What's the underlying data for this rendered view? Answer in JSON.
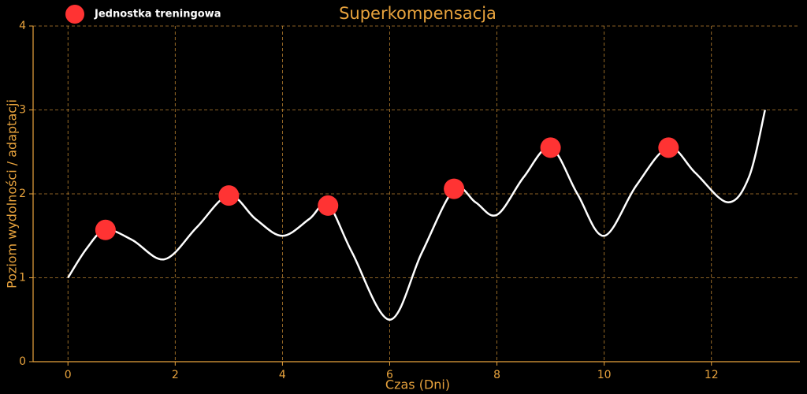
{
  "chart_data": {
    "type": "line",
    "title": "Superkompensacja",
    "xlabel": "Czas (Dni)",
    "ylabel": "Poziom wydolności / adaptacji",
    "x": [
      0,
      0.35,
      0.7,
      1.2,
      1.8,
      2.4,
      3.0,
      3.5,
      4.0,
      4.5,
      4.85,
      5.3,
      6.0,
      6.6,
      7.2,
      7.6,
      8.0,
      8.5,
      9.0,
      9.5,
      10.0,
      10.6,
      11.2,
      11.7,
      12.3,
      12.7,
      13.0
    ],
    "values": [
      1.0,
      1.35,
      1.57,
      1.45,
      1.22,
      1.6,
      1.98,
      1.7,
      1.5,
      1.7,
      1.87,
      1.3,
      0.5,
      1.3,
      2.05,
      1.9,
      1.75,
      2.2,
      2.55,
      2.0,
      1.5,
      2.1,
      2.55,
      2.25,
      1.9,
      2.2,
      3.0
    ],
    "color": "#ffffff",
    "points": {
      "name": "Jednostka treningowa",
      "color": "#ff3333",
      "x": [
        0.7,
        3.0,
        4.85,
        7.2,
        9.0,
        11.2
      ],
      "values": [
        1.57,
        1.98,
        1.86,
        2.06,
        2.55,
        2.55
      ]
    },
    "xlim": [
      -0.65,
      13.65
    ],
    "ylim": [
      0,
      4
    ],
    "xticks": [
      0,
      2,
      4,
      6,
      8,
      10,
      12
    ],
    "yticks": [
      0,
      1,
      2,
      3,
      4
    ],
    "grid": true,
    "legend": "upper left",
    "accent": "#e8a33d"
  }
}
